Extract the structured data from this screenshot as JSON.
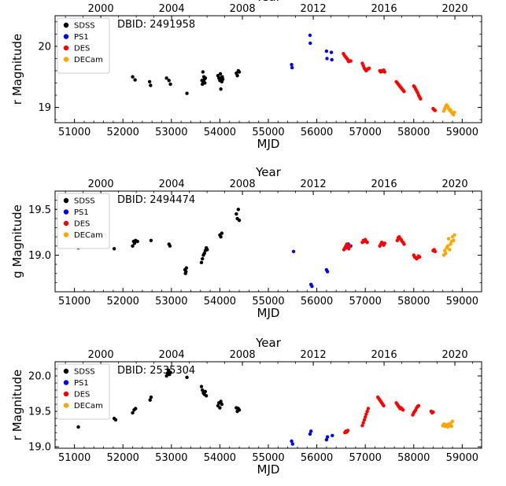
{
  "chart_data": [
    {
      "type": "scatter",
      "annotation": "DBID: 2491958",
      "xlabel": "MJD",
      "ylabel": "r Magnitude",
      "top_xlabel": "Year",
      "xlim": [
        50600,
        59400
      ],
      "ylim": [
        18.75,
        20.5
      ],
      "y_inverted": false,
      "xticks": [
        51000,
        52000,
        53000,
        54000,
        55000,
        56000,
        57000,
        58000,
        59000
      ],
      "xtick_labels": [
        "51000",
        "52000",
        "53000",
        "54000",
        "55000",
        "56000",
        "57000",
        "58000",
        "59000"
      ],
      "yticks": [
        19,
        20
      ],
      "ytick_labels": [
        "19",
        "20"
      ],
      "top_ticks_mjd": [
        51544,
        53005,
        54466,
        55927,
        57388,
        58849
      ],
      "top_tick_labels": [
        "2000",
        "2004",
        "2008",
        "2012",
        "2016",
        "2020"
      ],
      "legend": "top-left",
      "series": [
        {
          "name": "SDSS",
          "color": "#000000",
          "x": [
            51080,
            52200,
            52250,
            52550,
            52570,
            52900,
            52950,
            52980,
            53320,
            53630,
            53640,
            53650,
            53660,
            53670,
            53680,
            53690,
            53700,
            53960,
            53980,
            54000,
            54010,
            54020,
            54030,
            54040,
            54050,
            54060,
            54340,
            54360,
            54380,
            54400
          ],
          "y": [
            19.62,
            19.5,
            19.45,
            19.42,
            19.36,
            19.48,
            19.44,
            19.38,
            19.23,
            19.44,
            19.38,
            19.58,
            19.42,
            19.5,
            19.46,
            19.4,
            19.48,
            19.52,
            19.48,
            19.44,
            19.55,
            19.3,
            19.49,
            19.42,
            19.5,
            19.46,
            19.56,
            19.52,
            19.6,
            19.58
          ]
        },
        {
          "name": "PS1",
          "color": "#0000ff",
          "x": [
            55480,
            55490,
            55860,
            55865,
            56200,
            56210,
            56300,
            56310,
            56600,
            56650
          ],
          "y": [
            19.7,
            19.65,
            20.18,
            20.05,
            19.92,
            19.8,
            19.9,
            19.78,
            19.82,
            19.76
          ]
        },
        {
          "name": "DES",
          "color": "#ff0000",
          "x": [
            56550,
            56570,
            56600,
            56620,
            56640,
            56660,
            56700,
            56940,
            56960,
            56980,
            57000,
            57020,
            57040,
            57060,
            57080,
            57300,
            57320,
            57340,
            57360,
            57380,
            57400,
            57640,
            57660,
            57680,
            57700,
            57720,
            57740,
            57760,
            57780,
            57800,
            58000,
            58020,
            58040,
            58060,
            58080,
            58100,
            58120,
            58140,
            58400,
            58420,
            58440
          ],
          "y": [
            19.88,
            19.85,
            19.82,
            19.8,
            19.78,
            19.75,
            19.76,
            19.72,
            19.68,
            19.64,
            19.62,
            19.6,
            19.62,
            19.63,
            19.64,
            19.6,
            19.58,
            19.6,
            19.59,
            19.61,
            19.58,
            19.42,
            19.4,
            19.38,
            19.36,
            19.34,
            19.32,
            19.3,
            19.28,
            19.26,
            19.35,
            19.33,
            19.3,
            19.27,
            19.24,
            19.2,
            19.17,
            19.14,
            18.98,
            18.96,
            18.95
          ]
        },
        {
          "name": "DECam",
          "color": "#ffa500",
          "x": [
            58620,
            58640,
            58660,
            58680,
            58700,
            58720,
            58740,
            58760,
            58780,
            58800,
            58820,
            58840
          ],
          "y": [
            18.94,
            18.98,
            19.02,
            19.04,
            19.02,
            18.98,
            18.95,
            18.96,
            18.92,
            18.9,
            18.88,
            18.92
          ]
        }
      ]
    },
    {
      "type": "scatter",
      "annotation": "DBID: 2494474",
      "xlabel": "MJD",
      "ylabel": "g Magnitude",
      "top_xlabel": "Year",
      "xlim": [
        50600,
        59400
      ],
      "ylim": [
        18.6,
        19.7
      ],
      "y_inverted": false,
      "xticks": [
        51000,
        52000,
        53000,
        54000,
        55000,
        56000,
        57000,
        58000,
        59000
      ],
      "xtick_labels": [
        "51000",
        "52000",
        "53000",
        "54000",
        "55000",
        "56000",
        "57000",
        "58000",
        "59000"
      ],
      "yticks": [
        19.0,
        19.5
      ],
      "ytick_labels": [
        "19.0",
        "19.5"
      ],
      "top_ticks_mjd": [
        51544,
        53005,
        54466,
        55927,
        57388,
        58849
      ],
      "top_tick_labels": [
        "2000",
        "2004",
        "2008",
        "2012",
        "2016",
        "2020"
      ],
      "legend": "top-left",
      "series": [
        {
          "name": "SDSS",
          "color": "#000000",
          "x": [
            51080,
            51820,
            52200,
            52220,
            52240,
            52260,
            52300,
            52580,
            52950,
            52970,
            53280,
            53290,
            53300,
            53310,
            53620,
            53640,
            53660,
            53680,
            53700,
            53720,
            53740,
            54000,
            54020,
            54040,
            54340,
            54360,
            54380,
            54400
          ],
          "y": [
            19.08,
            19.07,
            19.1,
            19.15,
            19.13,
            19.16,
            19.15,
            19.16,
            19.12,
            19.1,
            18.84,
            18.8,
            18.82,
            18.86,
            18.92,
            18.96,
            19.0,
            19.02,
            19.05,
            19.08,
            19.06,
            19.22,
            19.2,
            19.24,
            19.45,
            19.4,
            19.5,
            19.38
          ]
        },
        {
          "name": "PS1",
          "color": "#0000ff",
          "x": [
            55520,
            55880,
            55900,
            56200,
            56220,
            56600,
            56650,
            56700
          ],
          "y": [
            19.04,
            18.68,
            18.66,
            18.84,
            18.82,
            19.08,
            19.12,
            19.1
          ]
        },
        {
          "name": "DES",
          "color": "#ff0000",
          "x": [
            56560,
            56580,
            56600,
            56620,
            56640,
            56660,
            56680,
            56940,
            56960,
            56980,
            57000,
            57020,
            57040,
            57300,
            57320,
            57340,
            57360,
            57380,
            57400,
            57660,
            57680,
            57700,
            57720,
            57740,
            57760,
            57780,
            57800,
            58000,
            58020,
            58040,
            58060,
            58080,
            58100,
            58120,
            58400,
            58420,
            58440
          ],
          "y": [
            19.06,
            19.08,
            19.1,
            19.12,
            19.09,
            19.07,
            19.1,
            19.14,
            19.16,
            19.15,
            19.17,
            19.15,
            19.14,
            19.1,
            19.12,
            19.14,
            19.13,
            19.11,
            19.13,
            19.16,
            19.19,
            19.2,
            19.18,
            19.17,
            19.15,
            19.14,
            19.12,
            19.0,
            18.98,
            18.97,
            18.96,
            18.97,
            18.99,
            18.98,
            19.05,
            19.06,
            19.04
          ]
        },
        {
          "name": "DECam",
          "color": "#ffa500",
          "x": [
            58620,
            58640,
            58660,
            58680,
            58700,
            58720,
            58740,
            58760,
            58780,
            58800,
            58820,
            58840
          ],
          "y": [
            19.0,
            19.05,
            19.02,
            19.08,
            19.1,
            19.18,
            19.06,
            19.12,
            19.15,
            19.2,
            19.16,
            19.22
          ]
        }
      ]
    },
    {
      "type": "scatter",
      "annotation": "DBID: 2535304",
      "xlabel": "MJD",
      "ylabel": "r Magnitude",
      "top_xlabel": "Year",
      "xlim": [
        50600,
        59400
      ],
      "ylim": [
        18.98,
        20.2
      ],
      "y_inverted": false,
      "xticks": [
        51000,
        52000,
        53000,
        54000,
        55000,
        56000,
        57000,
        58000,
        59000
      ],
      "xtick_labels": [
        "51000",
        "52000",
        "53000",
        "54000",
        "55000",
        "56000",
        "57000",
        "58000",
        "59000"
      ],
      "yticks": [
        19.0,
        19.5,
        20.0
      ],
      "ytick_labels": [
        "19.0",
        "19.5",
        "20.0"
      ],
      "top_ticks_mjd": [
        51544,
        53005,
        54466,
        55927,
        57388,
        58849
      ],
      "top_tick_labels": [
        "2000",
        "2004",
        "2008",
        "2012",
        "2016",
        "2020"
      ],
      "legend": "top-left",
      "series": [
        {
          "name": "SDSS",
          "color": "#000000",
          "x": [
            51080,
            51820,
            51850,
            52200,
            52230,
            52260,
            52560,
            52580,
            52900,
            52920,
            52940,
            52960,
            52980,
            53320,
            53620,
            53640,
            53660,
            53680,
            53700,
            53720,
            53960,
            53980,
            54000,
            54020,
            54040,
            54340,
            54360,
            54380,
            54400
          ],
          "y": [
            19.28,
            19.4,
            19.38,
            19.48,
            19.52,
            19.54,
            19.66,
            19.7,
            20.0,
            20.04,
            20.08,
            20.02,
            20.05,
            19.98,
            19.85,
            19.8,
            19.76,
            19.74,
            19.78,
            19.72,
            19.58,
            19.62,
            19.55,
            19.64,
            19.6,
            19.55,
            19.5,
            19.54,
            19.52
          ]
        },
        {
          "name": "PS1",
          "color": "#0000ff",
          "x": [
            55480,
            55500,
            55860,
            55880,
            56200,
            56220,
            56320
          ],
          "y": [
            19.08,
            19.04,
            19.18,
            19.22,
            19.1,
            19.14,
            19.16
          ]
        },
        {
          "name": "DES",
          "color": "#ff0000",
          "x": [
            56580,
            56600,
            56620,
            56640,
            56940,
            56960,
            56980,
            57000,
            57020,
            57040,
            57060,
            57260,
            57280,
            57300,
            57320,
            57340,
            57360,
            57380,
            57640,
            57660,
            57680,
            57700,
            57720,
            57740,
            57760,
            57780,
            57980,
            58000,
            58020,
            58040,
            58060,
            58080,
            58100,
            58360,
            58380,
            58400
          ],
          "y": [
            19.2,
            19.22,
            19.21,
            19.23,
            19.3,
            19.34,
            19.38,
            19.42,
            19.46,
            19.5,
            19.54,
            19.7,
            19.68,
            19.66,
            19.64,
            19.62,
            19.6,
            19.58,
            19.62,
            19.6,
            19.58,
            19.56,
            19.54,
            19.55,
            19.53,
            19.52,
            19.45,
            19.48,
            19.5,
            19.52,
            19.55,
            19.57,
            19.58,
            19.5,
            19.48,
            19.49
          ]
        },
        {
          "name": "DECam",
          "color": "#ffa500",
          "x": [
            58600,
            58620,
            58640,
            58660,
            58680,
            58700,
            58720,
            58740,
            58760,
            58780,
            58800
          ],
          "y": [
            19.3,
            19.32,
            19.29,
            19.31,
            19.3,
            19.28,
            19.32,
            19.3,
            19.33,
            19.29,
            19.36
          ]
        }
      ]
    }
  ]
}
